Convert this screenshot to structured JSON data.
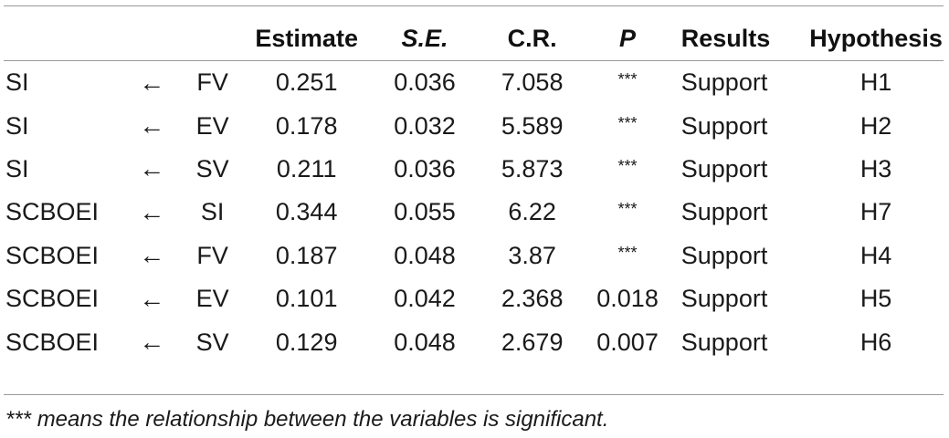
{
  "table": {
    "headers": {
      "estimate": "Estimate",
      "se": "S.E.",
      "cr": "C.R.",
      "p": "P",
      "results": "Results",
      "hypothesis": "Hypothesis"
    },
    "rows": [
      {
        "dependent": "SI",
        "arrow": "←",
        "independent": "FV",
        "estimate": "0.251",
        "se": "0.036",
        "cr": "7.058",
        "p": "***",
        "result": "Support",
        "hypothesis": "H1"
      },
      {
        "dependent": "SI",
        "arrow": "←",
        "independent": "EV",
        "estimate": "0.178",
        "se": "0.032",
        "cr": "5.589",
        "p": "***",
        "result": "Support",
        "hypothesis": "H2"
      },
      {
        "dependent": "SI",
        "arrow": "←",
        "independent": "SV",
        "estimate": "0.211",
        "se": "0.036",
        "cr": "5.873",
        "p": "***",
        "result": "Support",
        "hypothesis": "H3"
      },
      {
        "dependent": "SCBOEI",
        "arrow": "←",
        "independent": "SI",
        "estimate": "0.344",
        "se": "0.055",
        "cr": "6.22",
        "p": "***",
        "result": "Support",
        "hypothesis": "H7"
      },
      {
        "dependent": "SCBOEI",
        "arrow": "←",
        "independent": "FV",
        "estimate": "0.187",
        "se": "0.048",
        "cr": "3.87",
        "p": "***",
        "result": "Support",
        "hypothesis": "H4"
      },
      {
        "dependent": "SCBOEI",
        "arrow": "←",
        "independent": "EV",
        "estimate": "0.101",
        "se": "0.042",
        "cr": "2.368",
        "p": "0.018",
        "result": "Support",
        "hypothesis": "H5"
      },
      {
        "dependent": "SCBOEI",
        "arrow": "←",
        "independent": "SV",
        "estimate": "0.129",
        "se": "0.048",
        "cr": "2.679",
        "p": "0.007",
        "result": "Support",
        "hypothesis": "H6"
      }
    ]
  },
  "footnote": "*** means the relationship between the variables is significant."
}
